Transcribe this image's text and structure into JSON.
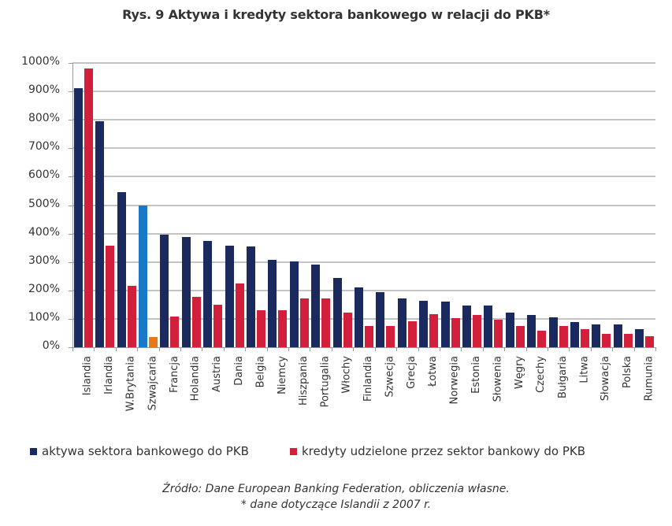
{
  "title": "Rys. 9 Aktywa i kredyty sektora bankowego w relacji do PKB*",
  "colors": {
    "assets": "#1b2a5e",
    "loans": "#d21f3c",
    "assets_highlight": "#1a78c8",
    "loans_highlight": "#e57a18",
    "grid": "#c4c4c4"
  },
  "legend": {
    "assets_label": "aktywa sektora bankowego do PKB",
    "loans_label": "kredyty udzielone przez sektor bankowy do PKB"
  },
  "source": {
    "line1": "Źródło: Dane European Banking Federation, obliczenia własne.",
    "line2": "* dane dotyczące Islandii z 2007 r."
  },
  "chart_data": {
    "type": "bar",
    "title": "Rys. 9 Aktywa i kredyty sektora bankowego w relacji do PKB*",
    "xlabel": "",
    "ylabel": "",
    "ylim": [
      0,
      1000
    ],
    "yticks": [
      "0%",
      "100%",
      "200%",
      "300%",
      "400%",
      "500%",
      "600%",
      "700%",
      "800%",
      "900%",
      "1000%"
    ],
    "grid": true,
    "legend_position": "bottom",
    "categories": [
      "Islandia",
      "Irlandia",
      "W.Brytania",
      "Szwajcaria",
      "Francja",
      "Holandia",
      "Austria",
      "Dania",
      "Belgia",
      "Niemcy",
      "Hiszpania",
      "Portugalia",
      "Włochy",
      "Finlandia",
      "Szwecja",
      "Grecja",
      "Łotwa",
      "Norwegia",
      "Estonia",
      "Słowenia",
      "Węgry",
      "Czechy",
      "Bułgaria",
      "Litwa",
      "Słowacja",
      "Polska",
      "Rumunia"
    ],
    "series": [
      {
        "name": "aktywa sektora bankowego do PKB",
        "color": "#1b2a5e",
        "values": [
          912,
          794,
          545,
          499,
          395,
          389,
          375,
          358,
          354,
          307,
          303,
          291,
          245,
          211,
          194,
          173,
          163,
          160,
          148,
          148,
          122,
          114,
          104,
          89,
          80,
          80,
          63
        ]
      },
      {
        "name": "kredyty udzielone przez sektor bankowy do PKB",
        "color": "#d21f3c",
        "values": [
          981,
          358,
          215,
          37,
          109,
          176,
          150,
          224,
          130,
          130,
          172,
          172,
          121,
          75,
          75,
          92,
          117,
          102,
          114,
          97,
          75,
          58,
          75,
          63,
          46,
          46,
          38
        ]
      }
    ],
    "annotations": [
      "Szwajcaria bars highlighted in light blue (assets) and orange (loans)"
    ]
  }
}
